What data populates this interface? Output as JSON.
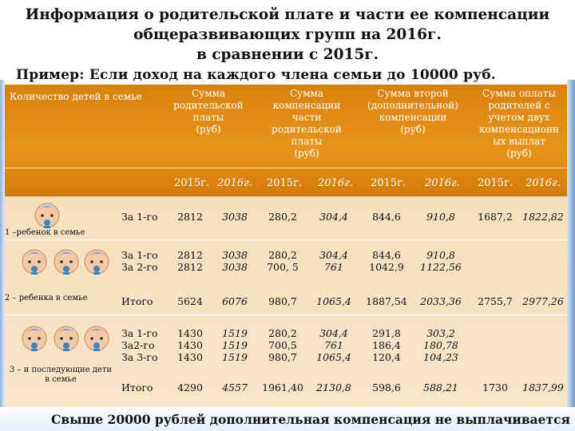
{
  "title": {
    "line1": "Информация о родительской плате и части ее компенсации",
    "line2": "общеразвивающих групп на 2016г.",
    "line3": "в сравнении с 2015г."
  },
  "example": "Пример: Если доход на каждого члена семьи до 10000 руб.",
  "table": {
    "headers": {
      "children_count": "Количество детей в семье",
      "parent_fee": [
        "Сумма",
        "родительской",
        "платы",
        "(руб)"
      ],
      "compensation": [
        "Сумма",
        "компенсации",
        "части",
        "родительской",
        "платы",
        "(руб)"
      ],
      "second_compensation": [
        "Сумма второй",
        "(дополнительной)",
        "компенсации",
        "(руб)"
      ],
      "payment_after": [
        "Сумма оплаты",
        "родителей с",
        "учетом двух",
        "компенсационн",
        "ых выплат",
        "(руб)"
      ]
    },
    "years": {
      "fee_2015": "2015г.",
      "fee_2016": "2016г.",
      "comp_2015": "2015г.",
      "comp_2016": "2016г.",
      "second_2015": "2015г.",
      "second_2016": "2016г.",
      "pay_2015": "2015г.",
      "pay_2016": "2016г."
    },
    "groups": {
      "one": "1 –ребенок в семье",
      "two": "2 – ребенка в семье",
      "three_a": "3 – и последующие дети",
      "three_b": "в семье"
    },
    "rows": {
      "r1": {
        "label": "За 1-го",
        "fee15": "2812",
        "fee16": "3038",
        "comp15": "280,2",
        "comp16": "304,4",
        "sec15": "844,6",
        "sec16": "910,8",
        "pay15": "1687,2",
        "pay16": "1822,82"
      },
      "r2": {
        "label1": "За 1-го",
        "label2": "За 2-го",
        "fee15a": "2812",
        "fee15b": "2812",
        "fee16a": "3038",
        "fee16b": "3038",
        "comp15a": "280,2",
        "comp15b": "700, 5",
        "comp16a": "304,4",
        "comp16b": "761",
        "sec15a": "844,6",
        "sec15b": "1042,9",
        "sec16a": "910,8",
        "sec16b": "1122,56"
      },
      "r2t": {
        "label": "Итого",
        "fee15": "5624",
        "fee16": "6076",
        "comp15": "980,7",
        "comp16": "1065,4",
        "sec15": "1887,54",
        "sec16": "2033,36",
        "pay15": "2755,7",
        "pay16": "2977,26"
      },
      "r3": {
        "label1": "За 1-го",
        "label2": "За2-го",
        "label3": "За 3-го",
        "fee15a": "1430",
        "fee15b": "1430",
        "fee15c": "1430",
        "fee16a": "1519",
        "fee16b": "1519",
        "fee16c": "1519",
        "comp15a": "280,2",
        "comp15b": "700,5",
        "comp15c": "980,7",
        "comp16a": "304,4",
        "comp16b": "761",
        "comp16c": "1065,4",
        "sec15a": "291,8",
        "sec15b": "186,4",
        "sec15c": "120,4",
        "sec16a": "303,2",
        "sec16b": "180,78",
        "sec16c": "104,23"
      },
      "r3t": {
        "label": "Итого",
        "fee15": "4290",
        "fee16": "4557",
        "comp15": "1961,40",
        "comp16": "2130,8",
        "sec15": "598,6",
        "sec16": "588,21",
        "pay15": "1730",
        "pay16": "1837,99"
      }
    }
  },
  "footer": "Свыше 20000 рублей дополнительная компенсация не выплачивается",
  "colors": {
    "header": "#e08a12",
    "body": "#f7e2c2",
    "side": "#6d98c9"
  },
  "icons": {
    "baby": "baby-face-icon"
  }
}
